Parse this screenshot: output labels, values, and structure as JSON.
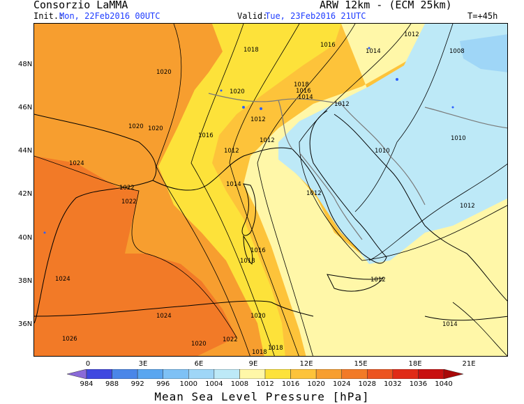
{
  "header": {
    "left_title": "Consorzio LaMMA",
    "right_title": "ARW 12km - (ECM 25km)",
    "init_label": "Init.:",
    "init_value": "Mon, 22Feb2016 00UTC",
    "valid_label": "Valid:",
    "valid_value": "Tue, 23Feb2016 21UTC",
    "lead": "T=+45h"
  },
  "axes": {
    "latitudes": [
      "48N",
      "46N",
      "44N",
      "42N",
      "40N",
      "38N",
      "36N"
    ],
    "longitudes": [
      "0",
      "3E",
      "6E",
      "9E",
      "12E",
      "15E",
      "18E",
      "21E"
    ]
  },
  "isobar_labels": [
    "1012",
    "1016",
    "1014",
    "1008",
    "1020",
    "1018",
    "1020",
    "1018",
    "1016",
    "1014",
    "1012",
    "1020",
    "1020",
    "1016",
    "1012",
    "1012",
    "1010",
    "1010",
    "1024",
    "1022",
    "1022",
    "1014",
    "1012",
    "1012",
    "1012",
    "1016",
    "1018",
    "1024",
    "1012",
    "1024",
    "1020",
    "1026",
    "1020",
    "1022",
    "1018",
    "1018",
    "1014"
  ],
  "colorbar": {
    "levels": [
      "984",
      "988",
      "992",
      "996",
      "1000",
      "1004",
      "1008",
      "1012",
      "1016",
      "1020",
      "1024",
      "1028",
      "1032",
      "1036",
      "1040"
    ],
    "colors": [
      "#8a6ad8",
      "#3f48e0",
      "#4a86e8",
      "#5aa6f0",
      "#7ec1f5",
      "#9fd6f7",
      "#bde9f7",
      "#fff7a8",
      "#fde23a",
      "#fdc33a",
      "#f79e2f",
      "#f27a27",
      "#ec5420",
      "#e02b17",
      "#c81010",
      "#a80808"
    ]
  },
  "footer": "Mean Sea Level Pressure [hPa]"
}
